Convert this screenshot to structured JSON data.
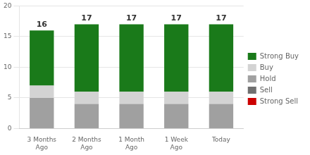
{
  "chart_data": {
    "type": "bar",
    "stacked": true,
    "categories": [
      "3 Months\nAgo",
      "2 Months\nAgo",
      "1 Month\nAgo",
      "1 Week\nAgo",
      "Today"
    ],
    "series": [
      {
        "name": "Strong Sell",
        "color": "#cc0000",
        "values": [
          0,
          0,
          0,
          0,
          0
        ]
      },
      {
        "name": "Sell",
        "color": "#707070",
        "values": [
          0,
          0,
          0,
          0,
          0
        ]
      },
      {
        "name": "Hold",
        "color": "#a0a0a0",
        "values": [
          5,
          4,
          4,
          4,
          4
        ]
      },
      {
        "name": "Buy",
        "color": "#d3d3d3",
        "values": [
          2,
          2,
          2,
          2,
          2
        ]
      },
      {
        "name": "Strong Buy",
        "color": "#1a7a1a",
        "values": [
          9,
          11,
          11,
          11,
          11
        ]
      }
    ],
    "totals": [
      16,
      17,
      17,
      17,
      17
    ],
    "ylim": [
      0,
      20
    ],
    "yticks": [
      0,
      5,
      10,
      15,
      20
    ],
    "grid": true,
    "legend": "right"
  }
}
